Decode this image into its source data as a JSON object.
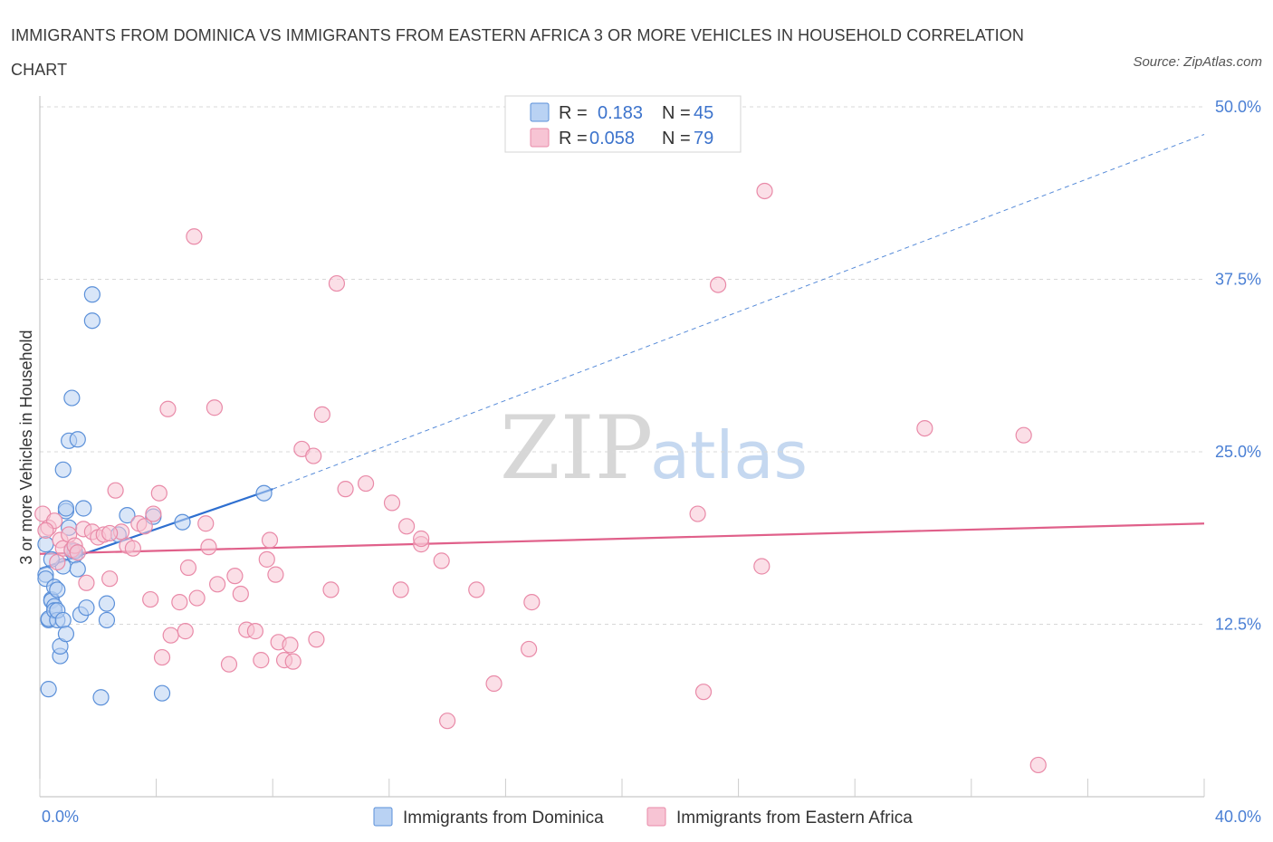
{
  "title": "IMMIGRANTS FROM DOMINICA VS IMMIGRANTS FROM EASTERN AFRICA 3 OR MORE VEHICLES IN HOUSEHOLD CORRELATION CHART",
  "source": "Source: ZipAtlas.com",
  "watermark": {
    "zip": "ZIP",
    "atlas": "atlas"
  },
  "colors": {
    "blue_fill": "#b9d2f3",
    "blue_stroke": "#5b90d9",
    "blue_line": "#2e6fd0",
    "pink_fill": "#f7c4d4",
    "pink_stroke": "#e98aa8",
    "pink_line": "#e0608a",
    "grid": "#d8d8d8",
    "tick_label": "#4a7fd4"
  },
  "legend": {
    "rows": [
      {
        "r_label": "R =",
        "r_value": "0.183",
        "n_label": "N =",
        "n_value": "45"
      },
      {
        "r_label": "R =",
        "r_value": "0.058",
        "n_label": "N =",
        "n_value": "79"
      }
    ]
  },
  "chart_data": {
    "type": "scatter",
    "title": "IMMIGRANTS FROM DOMINICA VS IMMIGRANTS FROM EASTERN AFRICA 3 OR MORE VEHICLES IN HOUSEHOLD CORRELATION CHART",
    "xlabel": "",
    "ylabel": "3 or more Vehicles in Household",
    "xlim": [
      0,
      40
    ],
    "ylim": [
      0,
      50
    ],
    "x_tick_labels": [
      "0.0%",
      "40.0%"
    ],
    "y_ticks": [
      12.5,
      25.0,
      37.5,
      50.0
    ],
    "y_tick_labels": [
      "12.5%",
      "25.0%",
      "37.5%",
      "50.0%"
    ],
    "grid": true,
    "legend_position": "top-center",
    "series": [
      {
        "name": "Immigrants from Dominica",
        "color": "#5b90d9",
        "r": 0.183,
        "n": 45,
        "trend": {
          "x0": 0.0,
          "y0": 16.5,
          "x1": 8.0,
          "y1": 22.3,
          "extend_to_x": 40.0,
          "extend_to_y": 48.0
        },
        "points": [
          [
            0.2,
            16.1
          ],
          [
            0.2,
            15.8
          ],
          [
            0.2,
            18.3
          ],
          [
            0.3,
            12.8
          ],
          [
            0.3,
            12.9
          ],
          [
            0.3,
            7.8
          ],
          [
            0.4,
            14.3
          ],
          [
            0.4,
            14.2
          ],
          [
            0.5,
            13.8
          ],
          [
            0.5,
            15.2
          ],
          [
            0.5,
            13.5
          ],
          [
            0.6,
            12.8
          ],
          [
            0.6,
            13.5
          ],
          [
            0.6,
            15.0
          ],
          [
            0.7,
            10.2
          ],
          [
            0.7,
            10.9
          ],
          [
            0.8,
            23.7
          ],
          [
            0.8,
            16.7
          ],
          [
            0.8,
            12.8
          ],
          [
            0.9,
            11.8
          ],
          [
            0.9,
            20.7
          ],
          [
            0.9,
            20.9
          ],
          [
            1.0,
            25.8
          ],
          [
            1.1,
            28.9
          ],
          [
            1.1,
            17.8
          ],
          [
            1.2,
            17.5
          ],
          [
            1.2,
            17.8
          ],
          [
            1.3,
            25.9
          ],
          [
            1.3,
            16.5
          ],
          [
            1.4,
            13.2
          ],
          [
            1.5,
            20.9
          ],
          [
            1.6,
            13.7
          ],
          [
            1.8,
            36.4
          ],
          [
            1.8,
            34.5
          ],
          [
            2.1,
            7.2
          ],
          [
            2.3,
            12.8
          ],
          [
            2.3,
            14.0
          ],
          [
            2.7,
            19.0
          ],
          [
            3.0,
            20.4
          ],
          [
            3.9,
            20.3
          ],
          [
            4.2,
            7.5
          ],
          [
            4.9,
            19.9
          ],
          [
            7.7,
            22.0
          ],
          [
            0.4,
            17.2
          ],
          [
            1.0,
            19.5
          ]
        ]
      },
      {
        "name": "Immigrants from Eastern Africa",
        "color": "#e98aa8",
        "r": 0.058,
        "n": 79,
        "trend": {
          "x0": 0.0,
          "y0": 17.6,
          "x1": 40.0,
          "y1": 19.8
        },
        "points": [
          [
            0.1,
            20.5
          ],
          [
            0.3,
            19.5
          ],
          [
            0.5,
            20.0
          ],
          [
            0.6,
            17.0
          ],
          [
            0.7,
            18.6
          ],
          [
            0.8,
            18.0
          ],
          [
            1.0,
            19.0
          ],
          [
            1.1,
            17.9
          ],
          [
            1.2,
            18.2
          ],
          [
            1.5,
            19.4
          ],
          [
            1.6,
            15.5
          ],
          [
            1.8,
            19.2
          ],
          [
            2.0,
            18.8
          ],
          [
            2.2,
            19.0
          ],
          [
            2.4,
            15.8
          ],
          [
            2.6,
            22.2
          ],
          [
            2.8,
            19.2
          ],
          [
            3.0,
            18.2
          ],
          [
            3.2,
            18.0
          ],
          [
            3.4,
            19.8
          ],
          [
            3.6,
            19.6
          ],
          [
            3.8,
            14.3
          ],
          [
            3.9,
            20.5
          ],
          [
            4.1,
            22.0
          ],
          [
            4.2,
            10.1
          ],
          [
            4.4,
            28.1
          ],
          [
            4.5,
            11.7
          ],
          [
            4.8,
            14.1
          ],
          [
            5.0,
            12.0
          ],
          [
            5.1,
            16.6
          ],
          [
            5.3,
            40.6
          ],
          [
            5.4,
            14.4
          ],
          [
            5.7,
            19.8
          ],
          [
            5.8,
            18.1
          ],
          [
            6.1,
            15.4
          ],
          [
            6.0,
            28.2
          ],
          [
            6.5,
            9.6
          ],
          [
            6.7,
            16.0
          ],
          [
            6.9,
            14.7
          ],
          [
            7.1,
            12.1
          ],
          [
            7.4,
            12.0
          ],
          [
            7.6,
            9.9
          ],
          [
            7.8,
            17.2
          ],
          [
            7.9,
            18.6
          ],
          [
            8.1,
            16.1
          ],
          [
            8.2,
            11.2
          ],
          [
            8.4,
            9.9
          ],
          [
            8.6,
            11.0
          ],
          [
            8.7,
            9.8
          ],
          [
            9.0,
            25.2
          ],
          [
            9.4,
            24.7
          ],
          [
            9.5,
            11.4
          ],
          [
            9.7,
            27.7
          ],
          [
            10.0,
            15.0
          ],
          [
            10.2,
            37.2
          ],
          [
            10.5,
            22.3
          ],
          [
            11.2,
            22.7
          ],
          [
            12.1,
            21.3
          ],
          [
            12.4,
            15.0
          ],
          [
            12.6,
            19.6
          ],
          [
            13.1,
            18.3
          ],
          [
            13.1,
            18.7
          ],
          [
            13.8,
            17.1
          ],
          [
            14.0,
            5.5
          ],
          [
            15.0,
            15.0
          ],
          [
            15.6,
            8.2
          ],
          [
            16.8,
            10.7
          ],
          [
            16.9,
            14.1
          ],
          [
            22.6,
            20.5
          ],
          [
            22.8,
            7.6
          ],
          [
            23.3,
            37.1
          ],
          [
            24.8,
            16.7
          ],
          [
            24.9,
            43.9
          ],
          [
            30.4,
            26.7
          ],
          [
            33.8,
            26.2
          ],
          [
            34.3,
            2.3
          ],
          [
            1.3,
            17.7
          ],
          [
            2.4,
            19.1
          ],
          [
            0.2,
            19.3
          ]
        ]
      }
    ]
  },
  "bottom_legend": [
    {
      "label": "Immigrants from Dominica"
    },
    {
      "label": "Immigrants from Eastern Africa"
    }
  ]
}
